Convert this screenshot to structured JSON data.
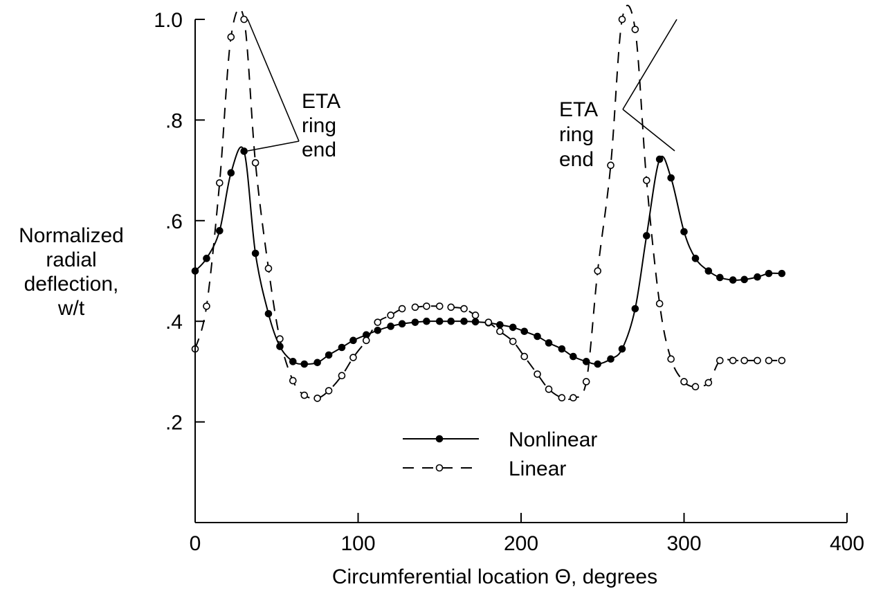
{
  "chart_data": {
    "type": "line",
    "title": "",
    "xlabel": "Circumferential location Θ, degrees",
    "ylabel_lines": [
      "Normalized",
      "radial",
      "deflection,",
      "w/t"
    ],
    "xlim": [
      0,
      400
    ],
    "ylim": [
      0,
      1.0
    ],
    "x_ticks": [
      {
        "value": 0,
        "label": "0"
      },
      {
        "value": 100,
        "label": "100"
      },
      {
        "value": 200,
        "label": "200"
      },
      {
        "value": 300,
        "label": "300"
      },
      {
        "value": 400,
        "label": "400"
      }
    ],
    "y_ticks": [
      {
        "value": 0.2,
        "label": ".2"
      },
      {
        "value": 0.4,
        "label": ".4"
      },
      {
        "value": 0.6,
        "label": ".6"
      },
      {
        "value": 0.8,
        "label": ".8"
      },
      {
        "value": 1.0,
        "label": "1.0"
      }
    ],
    "grid": false,
    "legend_position": "bottom-center",
    "series": [
      {
        "name": "Nonlinear",
        "style": "solid",
        "marker": "filled-circle",
        "x": [
          0,
          7,
          15,
          22,
          30,
          37,
          45,
          52,
          60,
          67,
          75,
          82,
          90,
          97,
          105,
          112,
          120,
          127,
          135,
          142,
          150,
          157,
          165,
          172,
          180,
          187,
          195,
          202,
          210,
          217,
          225,
          232,
          240,
          247,
          255,
          262,
          270,
          277,
          285,
          292,
          300,
          307,
          315,
          322,
          330,
          337,
          345,
          352,
          360
        ],
        "y": [
          0.5,
          0.525,
          0.58,
          0.695,
          0.738,
          0.535,
          0.415,
          0.35,
          0.32,
          0.315,
          0.318,
          0.333,
          0.348,
          0.362,
          0.373,
          0.382,
          0.39,
          0.395,
          0.398,
          0.4,
          0.4,
          0.4,
          0.4,
          0.399,
          0.397,
          0.393,
          0.388,
          0.38,
          0.37,
          0.357,
          0.345,
          0.33,
          0.32,
          0.315,
          0.325,
          0.345,
          0.425,
          0.57,
          0.722,
          0.685,
          0.578,
          0.525,
          0.5,
          0.487,
          0.482,
          0.483,
          0.488,
          0.495,
          0.495
        ]
      },
      {
        "name": "Linear",
        "style": "dashed",
        "marker": "open-circle",
        "x": [
          0,
          7,
          15,
          22,
          30,
          37,
          45,
          52,
          60,
          67,
          75,
          82,
          90,
          97,
          105,
          112,
          120,
          127,
          135,
          142,
          150,
          157,
          165,
          172,
          180,
          187,
          195,
          202,
          210,
          217,
          225,
          232,
          240,
          247,
          255,
          262,
          270,
          277,
          285,
          292,
          300,
          307,
          315,
          322,
          330,
          337,
          345,
          352,
          360
        ],
        "y": [
          0.345,
          0.43,
          0.675,
          0.965,
          1.0,
          0.715,
          0.505,
          0.365,
          0.282,
          0.253,
          0.247,
          0.262,
          0.292,
          0.328,
          0.362,
          0.398,
          0.412,
          0.425,
          0.428,
          0.43,
          0.43,
          0.428,
          0.425,
          0.412,
          0.398,
          0.38,
          0.36,
          0.33,
          0.295,
          0.265,
          0.248,
          0.248,
          0.28,
          0.5,
          0.71,
          1.0,
          0.98,
          0.68,
          0.435,
          0.325,
          0.28,
          0.27,
          0.278,
          0.322,
          0.322,
          0.322,
          0.322,
          0.322,
          0.322
        ]
      }
    ],
    "annotations": [
      {
        "lines": [
          "ETA",
          "ring",
          "end"
        ],
        "position": "left-peak"
      },
      {
        "lines": [
          "ETA",
          "ring",
          "end"
        ],
        "position": "right-peak"
      }
    ]
  }
}
